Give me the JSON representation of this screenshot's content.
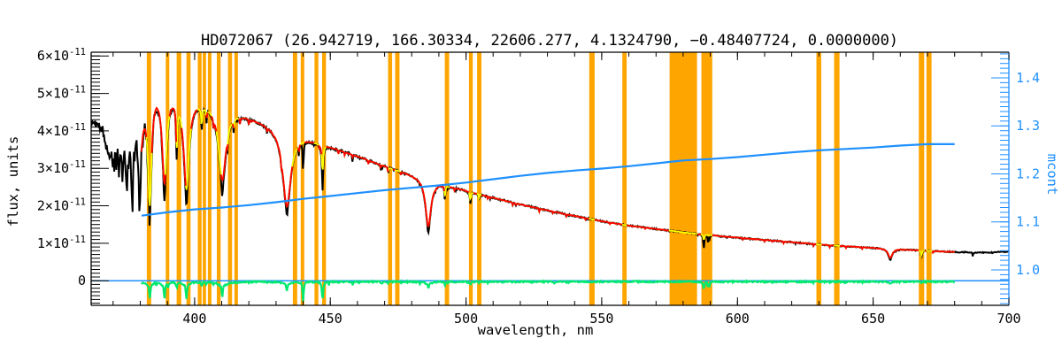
{
  "chart_data": {
    "type": "line",
    "title": "HD072067   (26.942719, 166.30334, 22606.277, 4.1324790, −0.48407724, 0.0000000)",
    "xlabel": "wavelength, nm",
    "ylabel": "flux, units",
    "ylabel_right": "mcont",
    "x_range": [
      361.9,
      700
    ],
    "x_ticks": [
      400,
      450,
      500,
      550,
      600,
      650,
      700
    ],
    "x_minor_step": 10,
    "y_flux_range_e11": [
      -0.657,
      6.1
    ],
    "y_flux_ticks_e11": [
      0,
      1,
      2,
      3,
      4,
      5,
      6
    ],
    "y_flux_tick_labels": [
      "0",
      "1×10^-11",
      "2×10^-11",
      "3×10^-11",
      "4×10^-11",
      "5×10^-11",
      "6×10^-11"
    ],
    "y_flux_minor_step_e11": 0.1,
    "y_right_range": [
      0.926,
      1.454
    ],
    "y_right_ticks": [
      1.0,
      1.1,
      1.2,
      1.3,
      1.4
    ],
    "y_right_tick_labels": [
      "1.0",
      "1.1",
      "1.2",
      "1.3",
      "1.4"
    ],
    "y_right_minor_step": 0.01,
    "colors": {
      "spectrum": "#000000",
      "fit": "#ff0000",
      "fit_masked": "#ffff00",
      "residual": "#00e96e",
      "mcont": "#1e90ff",
      "mask_band": "#ffa500",
      "zero_line": "#1e90ff",
      "axis": "#000000",
      "axis_right": "#1e90ff"
    },
    "series": [
      {
        "name": "observed spectrum",
        "color": "#000000"
      },
      {
        "name": "model fit",
        "color": "#ff0000"
      },
      {
        "name": "model fit inside masked bands",
        "color": "#ffff00"
      },
      {
        "name": "residual obs−fit",
        "color": "#00e96e"
      },
      {
        "name": "mcont ratio curve",
        "color": "#1e90ff"
      },
      {
        "name": "masked wavelength bands",
        "color": "#ffa500"
      }
    ],
    "model_range_nm": [
      380.5,
      680
    ],
    "residual_range_nm": [
      380.5,
      680
    ],
    "residual_baseline_e11": -0.025,
    "masked_bands_nm": [
      [
        382.4,
        384.0
      ],
      [
        389.4,
        390.7
      ],
      [
        393.4,
        395.1
      ],
      [
        397.0,
        398.5
      ],
      [
        401.2,
        402.6
      ],
      [
        403.0,
        404.2
      ],
      [
        404.9,
        406.2
      ],
      [
        408.2,
        409.6
      ],
      [
        412.3,
        413.8
      ],
      [
        414.7,
        416.0
      ],
      [
        436.2,
        437.8
      ],
      [
        439.1,
        440.4
      ],
      [
        444.2,
        445.6
      ],
      [
        447.0,
        448.4
      ],
      [
        471.3,
        472.8
      ],
      [
        473.9,
        475.5
      ],
      [
        492.2,
        493.8
      ],
      [
        501.1,
        502.5
      ],
      [
        504.1,
        505.7
      ],
      [
        545.4,
        547.4
      ],
      [
        557.6,
        559.2
      ],
      [
        575.0,
        585.1
      ],
      [
        586.7,
        590.7
      ],
      [
        629.1,
        630.9
      ],
      [
        635.6,
        637.6
      ],
      [
        666.8,
        668.8
      ],
      [
        669.6,
        671.5
      ]
    ],
    "continuum_e11": [
      [
        361.9,
        4.28
      ],
      [
        364,
        4.2
      ],
      [
        366,
        4.1
      ],
      [
        368,
        4.02
      ],
      [
        370,
        3.98
      ],
      [
        372,
        4.0
      ],
      [
        374,
        4.05
      ],
      [
        376,
        4.12
      ],
      [
        378,
        4.26
      ],
      [
        380,
        4.5
      ],
      [
        382,
        4.85
      ],
      [
        384,
        5.12
      ],
      [
        386,
        5.2
      ],
      [
        388,
        5.16
      ],
      [
        390,
        5.11
      ],
      [
        392,
        5.06
      ],
      [
        394,
        5.01
      ],
      [
        396,
        4.96
      ],
      [
        398,
        4.92
      ],
      [
        400,
        4.88
      ],
      [
        402,
        4.83
      ],
      [
        404,
        4.79
      ],
      [
        406,
        4.74
      ],
      [
        408,
        4.7
      ],
      [
        410,
        4.65
      ],
      [
        412,
        4.6
      ],
      [
        414,
        4.55
      ],
      [
        416,
        4.5
      ],
      [
        418,
        4.45
      ],
      [
        420,
        4.4
      ],
      [
        423,
        4.31
      ],
      [
        426,
        4.23
      ],
      [
        429,
        4.15
      ],
      [
        432,
        4.07
      ],
      [
        435,
        3.99
      ],
      [
        438,
        3.91
      ],
      [
        441,
        3.83
      ],
      [
        444,
        3.75
      ],
      [
        447,
        3.67
      ],
      [
        450,
        3.59
      ],
      [
        454,
        3.49
      ],
      [
        458,
        3.38
      ],
      [
        462,
        3.28
      ],
      [
        466,
        3.17
      ],
      [
        470,
        3.07
      ],
      [
        474,
        2.97
      ],
      [
        478,
        2.88
      ],
      [
        482,
        2.79
      ],
      [
        486,
        2.7
      ],
      [
        490,
        2.62
      ],
      [
        494,
        2.53
      ],
      [
        498,
        2.45
      ],
      [
        502,
        2.37
      ],
      [
        506,
        2.29
      ],
      [
        510,
        2.22
      ],
      [
        515,
        2.13
      ],
      [
        520,
        2.04
      ],
      [
        525,
        1.96
      ],
      [
        530,
        1.88
      ],
      [
        535,
        1.8
      ],
      [
        540,
        1.73
      ],
      [
        545,
        1.66
      ],
      [
        550,
        1.59
      ],
      [
        555,
        1.53
      ],
      [
        560,
        1.47
      ],
      [
        565,
        1.43
      ],
      [
        570,
        1.38
      ],
      [
        575,
        1.34
      ],
      [
        580,
        1.29
      ],
      [
        585,
        1.25
      ],
      [
        590,
        1.22
      ],
      [
        595,
        1.18
      ],
      [
        600,
        1.15
      ],
      [
        605,
        1.12
      ],
      [
        610,
        1.09
      ],
      [
        615,
        1.06
      ],
      [
        620,
        1.03
      ],
      [
        625,
        1.0
      ],
      [
        630,
        0.97
      ],
      [
        635,
        0.94
      ],
      [
        640,
        0.92
      ],
      [
        645,
        0.9
      ],
      [
        650,
        0.88
      ],
      [
        655,
        0.86
      ],
      [
        660,
        0.84
      ],
      [
        665,
        0.82
      ],
      [
        670,
        0.8
      ],
      [
        675,
        0.78
      ],
      [
        680,
        0.77
      ],
      [
        685,
        0.76
      ],
      [
        690,
        0.75
      ],
      [
        695,
        0.76
      ],
      [
        700,
        0.78
      ]
    ],
    "absorption_lines": [
      [
        656.3,
        0.9,
        0.28,
        0.25,
        0.04
      ],
      [
        486.1,
        1.2,
        1.31,
        1.25,
        0.12
      ],
      [
        434.0,
        1.8,
        2.1,
        2.02,
        0.18
      ],
      [
        410.2,
        1.6,
        2.05,
        1.92,
        0.28
      ],
      [
        397.0,
        1.2,
        2.55,
        2.42,
        0.33
      ],
      [
        388.9,
        1.0,
        2.55,
        2.42,
        0.33
      ],
      [
        383.5,
        0.8,
        3.05,
        2.88,
        0.25
      ],
      [
        379.8,
        0.6,
        2.1,
        2.0,
        0.25
      ],
      [
        377.1,
        0.5,
        1.7,
        1.62,
        0.15
      ],
      [
        375.05,
        0.45,
        1.4,
        1.35,
        0.1
      ],
      [
        373.45,
        0.4,
        1.15,
        1.12,
        0
      ],
      [
        372.2,
        0.35,
        0.95,
        0.92,
        0
      ],
      [
        371.2,
        0.3,
        0.8,
        0.78,
        0
      ],
      [
        370.4,
        0.26,
        0.68,
        0.66,
        0
      ],
      [
        369.75,
        0.24,
        0.58,
        0.56,
        0
      ],
      [
        369.2,
        0.22,
        0.5,
        0.48,
        0
      ],
      [
        368.75,
        0.2,
        0.44,
        0.42,
        0
      ],
      [
        368.35,
        0.19,
        0.38,
        0.37,
        0
      ],
      [
        368.0,
        0.18,
        0.33,
        0.32,
        0
      ],
      [
        367.7,
        0.17,
        0.29,
        0.28,
        0
      ],
      [
        367.4,
        0.16,
        0.25,
        0.24,
        0
      ],
      [
        367.1,
        0.15,
        0.22,
        0.21,
        0
      ],
      [
        366.8,
        0.15,
        0.19,
        0.18,
        0
      ],
      [
        393.4,
        0.28,
        1.25,
        1.2,
        0.1
      ],
      [
        402.6,
        0.22,
        0.55,
        0.5,
        0.05
      ],
      [
        404.4,
        0.15,
        0.3,
        0.28,
        0
      ],
      [
        407.0,
        0.15,
        0.25,
        0.22,
        0
      ],
      [
        412.1,
        0.18,
        0.35,
        0.32,
        0
      ],
      [
        414.4,
        0.15,
        0.3,
        0.28,
        0
      ],
      [
        416.7,
        0.12,
        0.2,
        0.18,
        0
      ],
      [
        420.0,
        0.12,
        0.18,
        0.15,
        0
      ],
      [
        426.7,
        0.12,
        0.15,
        0.12,
        0
      ],
      [
        432.0,
        0.15,
        0.2,
        0.2,
        0
      ],
      [
        438.4,
        0.15,
        0.25,
        0.2,
        0
      ],
      [
        440.0,
        0.15,
        0.95,
        0.0,
        0
      ],
      [
        447.15,
        0.3,
        1.1,
        0.72,
        0.1
      ],
      [
        453.0,
        0.12,
        0.15,
        0.1,
        0
      ],
      [
        455.3,
        0.12,
        0.12,
        0.1,
        0
      ],
      [
        458.2,
        0.1,
        0.1,
        0.08,
        0
      ],
      [
        464.0,
        0.12,
        0.12,
        0.1,
        0
      ],
      [
        468.6,
        0.12,
        0.15,
        0.12,
        0
      ],
      [
        471.3,
        0.12,
        0.2,
        0.15,
        0
      ],
      [
        476.0,
        0.1,
        0.1,
        0.08,
        0
      ],
      [
        492.2,
        0.2,
        0.32,
        0.28,
        0.05
      ],
      [
        495.8,
        0.1,
        0.1,
        0.08,
        0
      ],
      [
        501.6,
        0.2,
        0.28,
        0.24,
        0.04
      ],
      [
        504.8,
        0.12,
        0.15,
        0.12,
        0
      ],
      [
        508.0,
        0.1,
        0.08,
        0.06,
        0
      ],
      [
        517.2,
        0.12,
        0.1,
        0.08,
        0
      ],
      [
        518.4,
        0.12,
        0.08,
        0.06,
        0
      ],
      [
        527.0,
        0.12,
        0.1,
        0.08,
        0
      ],
      [
        532.0,
        0.1,
        0.06,
        0.05,
        0
      ],
      [
        537.0,
        0.1,
        0.06,
        0.05,
        0
      ],
      [
        544.0,
        0.1,
        0.05,
        0.04,
        0
      ],
      [
        553.0,
        0.1,
        0.05,
        0.04,
        0
      ],
      [
        566.0,
        0.1,
        0.05,
        0.04,
        0
      ],
      [
        587.6,
        0.25,
        0.3,
        0.14,
        0.05
      ],
      [
        589.1,
        0.12,
        0.22,
        0.0,
        0
      ],
      [
        589.7,
        0.12,
        0.18,
        0.0,
        0
      ],
      [
        602.0,
        0.1,
        0.05,
        0.04,
        0
      ],
      [
        610.0,
        0.1,
        0.05,
        0.04,
        0
      ],
      [
        617.0,
        0.1,
        0.06,
        0.05,
        0
      ],
      [
        628.0,
        0.1,
        0.07,
        0.05,
        0
      ],
      [
        634.0,
        0.1,
        0.06,
        0.05,
        0
      ],
      [
        640.0,
        0.1,
        0.05,
        0.04,
        0
      ],
      [
        646.0,
        0.1,
        0.05,
        0.04,
        0
      ],
      [
        667.8,
        0.2,
        0.16,
        0.14,
        0.02
      ],
      [
        672.0,
        0.1,
        0.05,
        0.04,
        0
      ],
      [
        686.7,
        0.15,
        0.12,
        0.0,
        0
      ],
      [
        694.0,
        0.1,
        0.05,
        0.0,
        0
      ]
    ],
    "mcont_curve": [
      [
        380.5,
        1.113
      ],
      [
        390,
        1.12
      ],
      [
        400,
        1.126
      ],
      [
        410,
        1.13
      ],
      [
        420,
        1.135
      ],
      [
        430,
        1.141
      ],
      [
        440,
        1.148
      ],
      [
        450,
        1.154
      ],
      [
        460,
        1.16
      ],
      [
        470,
        1.166
      ],
      [
        480,
        1.171
      ],
      [
        490,
        1.176
      ],
      [
        500,
        1.182
      ],
      [
        510,
        1.189
      ],
      [
        520,
        1.196
      ],
      [
        530,
        1.202
      ],
      [
        540,
        1.207
      ],
      [
        550,
        1.211
      ],
      [
        560,
        1.216
      ],
      [
        570,
        1.222
      ],
      [
        580,
        1.228
      ],
      [
        590,
        1.231
      ],
      [
        600,
        1.235
      ],
      [
        610,
        1.24
      ],
      [
        620,
        1.245
      ],
      [
        630,
        1.249
      ],
      [
        640,
        1.252
      ],
      [
        650,
        1.255
      ],
      [
        660,
        1.259
      ],
      [
        670,
        1.262
      ],
      [
        680,
        1.262
      ]
    ]
  }
}
